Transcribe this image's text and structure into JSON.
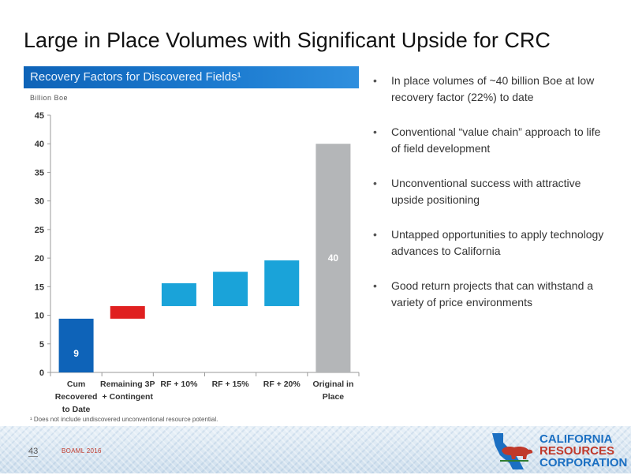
{
  "slide": {
    "title": "Large in Place Volumes with Significant Upside for CRC",
    "chart_header": "Recovery Factors for Discovered Fields¹",
    "unit_label": "Billion Boe",
    "footnote": "¹ Does not include undiscovered unconventional resource potential.",
    "page_number": "43",
    "source": "BOAML 2016"
  },
  "bullets": [
    "In place volumes of ~40 billion Boe at low recovery factor (22%) to date",
    "Conventional “value chain” approach to life of field development",
    "Unconventional success with attractive upside positioning",
    "Untapped opportunities to apply technology advances to California",
    "Good return projects that can withstand a variety of price environments"
  ],
  "logo": {
    "line1": "CALIFORNIA",
    "line2": "RESOURCES",
    "line3": "CORPORATION",
    "icon": "california-bear-logo-icon"
  },
  "colors": {
    "primary_blue": "#0e63b8",
    "light_blue": "#1aa3d9",
    "red": "#e02020",
    "gray": "#b4b6b8"
  },
  "chart_data": {
    "type": "waterfall",
    "ylim": [
      0,
      45
    ],
    "yticks": [
      0,
      5,
      10,
      15,
      20,
      25,
      30,
      35,
      40,
      45
    ],
    "ylabel": "Billion Boe",
    "categories": [
      [
        "Cum",
        "Recovered",
        "to Date"
      ],
      [
        "Remaining 3P",
        "+ Contingent"
      ],
      [
        "RF + 10%"
      ],
      [
        "RF + 15%"
      ],
      [
        "RF + 20%"
      ],
      [
        "Original in",
        "Place"
      ]
    ],
    "bars": [
      {
        "base": 0,
        "top": 9.4,
        "color": "#0e63b8",
        "label": "9"
      },
      {
        "base": 9.4,
        "top": 11.6,
        "color": "#e02020",
        "label": ""
      },
      {
        "base": 11.6,
        "top": 15.6,
        "color": "#1aa3d9",
        "label": ""
      },
      {
        "base": 11.6,
        "top": 17.6,
        "color": "#1aa3d9",
        "label": ""
      },
      {
        "base": 11.6,
        "top": 19.6,
        "color": "#1aa3d9",
        "label": ""
      },
      {
        "base": 0,
        "top": 40,
        "color": "#b4b6b8",
        "label": "40"
      }
    ]
  }
}
